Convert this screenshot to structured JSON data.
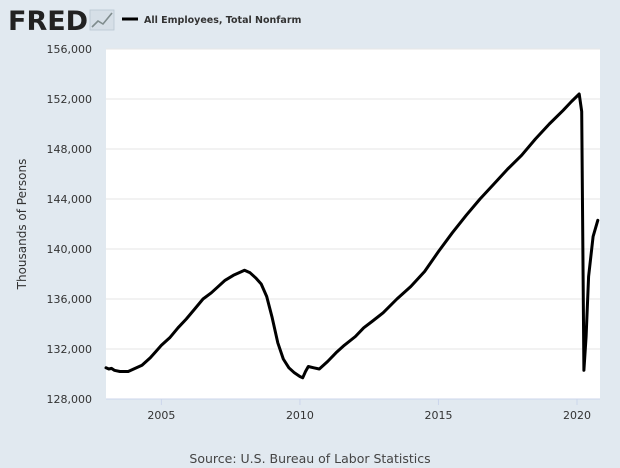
{
  "header": {
    "logo_text": "FRED",
    "logo_icon": "line-chart-icon",
    "legend_label": "All Employees, Total Nonfarm"
  },
  "footer": {
    "source": "Source: U.S. Bureau of Labor Statistics"
  },
  "colors": {
    "page_background": "#e1e9f0",
    "plot_background": "#ffffff",
    "series_line": "#000000",
    "gridline": "#e6e6e6",
    "logo_text": "#222222",
    "logo_icon_line": "#7f8c8d"
  },
  "chart_data": {
    "type": "line",
    "title": "",
    "xlabel": "",
    "ylabel": "Thousands of Persons",
    "xlim": [
      2003.0,
      2020.83
    ],
    "ylim": [
      128000,
      156000
    ],
    "x_ticks": [
      2005,
      2010,
      2015,
      2020
    ],
    "x_tick_labels": [
      "2005",
      "2010",
      "2015",
      "2020"
    ],
    "y_ticks": [
      128000,
      132000,
      136000,
      140000,
      144000,
      148000,
      152000,
      156000
    ],
    "y_tick_labels": [
      "128,000",
      "132,000",
      "136,000",
      "140,000",
      "144,000",
      "148,000",
      "152,000",
      "156,000"
    ],
    "grid": true,
    "legend_position": "top-left",
    "series": [
      {
        "name": "All Employees, Total Nonfarm",
        "points": [
          [
            2003.0,
            130500
          ],
          [
            2003.1,
            130400
          ],
          [
            2003.2,
            130450
          ],
          [
            2003.3,
            130300
          ],
          [
            2003.5,
            130200
          ],
          [
            2003.8,
            130200
          ],
          [
            2004.0,
            130400
          ],
          [
            2004.3,
            130700
          ],
          [
            2004.6,
            131300
          ],
          [
            2004.8,
            131800
          ],
          [
            2005.0,
            132300
          ],
          [
            2005.3,
            132900
          ],
          [
            2005.6,
            133700
          ],
          [
            2005.9,
            134400
          ],
          [
            2006.2,
            135200
          ],
          [
            2006.5,
            136000
          ],
          [
            2006.8,
            136500
          ],
          [
            2007.0,
            136900
          ],
          [
            2007.3,
            137500
          ],
          [
            2007.6,
            137900
          ],
          [
            2007.8,
            138100
          ],
          [
            2008.0,
            138300
          ],
          [
            2008.2,
            138100
          ],
          [
            2008.4,
            137700
          ],
          [
            2008.6,
            137200
          ],
          [
            2008.8,
            136200
          ],
          [
            2009.0,
            134500
          ],
          [
            2009.2,
            132500
          ],
          [
            2009.4,
            131200
          ],
          [
            2009.6,
            130500
          ],
          [
            2009.8,
            130100
          ],
          [
            2010.0,
            129800
          ],
          [
            2010.1,
            129700
          ],
          [
            2010.2,
            130200
          ],
          [
            2010.3,
            130600
          ],
          [
            2010.5,
            130500
          ],
          [
            2010.7,
            130400
          ],
          [
            2011.0,
            131000
          ],
          [
            2011.3,
            131700
          ],
          [
            2011.6,
            132300
          ],
          [
            2012.0,
            133000
          ],
          [
            2012.3,
            133700
          ],
          [
            2012.6,
            134200
          ],
          [
            2013.0,
            134900
          ],
          [
            2013.5,
            136000
          ],
          [
            2014.0,
            137000
          ],
          [
            2014.5,
            138200
          ],
          [
            2015.0,
            139800
          ],
          [
            2015.5,
            141300
          ],
          [
            2016.0,
            142700
          ],
          [
            2016.5,
            144000
          ],
          [
            2017.0,
            145200
          ],
          [
            2017.5,
            146400
          ],
          [
            2018.0,
            147500
          ],
          [
            2018.5,
            148800
          ],
          [
            2019.0,
            150000
          ],
          [
            2019.5,
            151100
          ],
          [
            2019.8,
            151800
          ],
          [
            2020.08,
            152400
          ],
          [
            2020.17,
            151000
          ],
          [
            2020.25,
            130300
          ],
          [
            2020.33,
            133000
          ],
          [
            2020.42,
            137800
          ],
          [
            2020.58,
            141000
          ],
          [
            2020.75,
            142300
          ]
        ]
      }
    ]
  }
}
